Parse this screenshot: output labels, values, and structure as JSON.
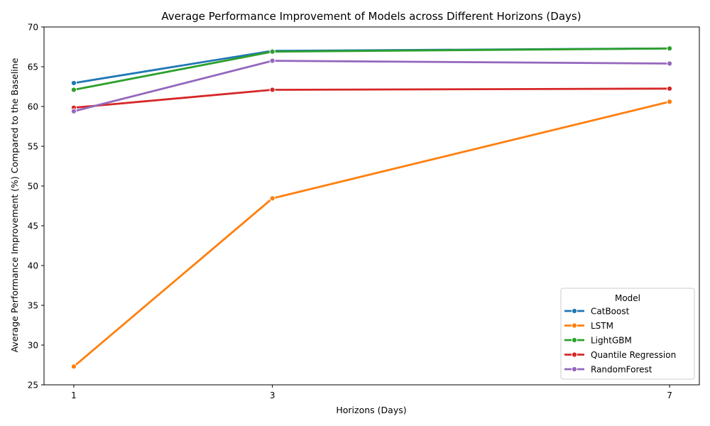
{
  "chart_data": {
    "type": "line",
    "title": "Average Performance Improvement of Models across Different Horizons (Days)",
    "xlabel": "Horizons (Days)",
    "ylabel": "Average Performance Improvement (%) Compared to the Baseline",
    "x": [
      1,
      3,
      7
    ],
    "x_tick_labels": [
      "1",
      "3",
      "7"
    ],
    "xlim": [
      0.7,
      7.3
    ],
    "ylim": [
      25,
      70
    ],
    "y_ticks": [
      25,
      30,
      35,
      40,
      45,
      50,
      55,
      60,
      65,
      70
    ],
    "grid": false,
    "legend_title": "Model",
    "legend_position": "lower-right",
    "series": [
      {
        "name": "CatBoost",
        "color": "#1f77b4",
        "values": [
          62.95,
          67.0,
          67.3
        ]
      },
      {
        "name": "LSTM",
        "color": "#ff7f0e",
        "values": [
          27.3,
          48.45,
          60.6
        ]
      },
      {
        "name": "LightGBM",
        "color": "#2ca02c",
        "values": [
          62.1,
          66.9,
          67.3
        ]
      },
      {
        "name": "Quantile Regression",
        "color": "#d62728",
        "values": [
          59.85,
          62.1,
          62.25
        ]
      },
      {
        "name": "RandomForest",
        "color": "#9467bd",
        "values": [
          59.4,
          65.75,
          65.4
        ]
      }
    ]
  }
}
